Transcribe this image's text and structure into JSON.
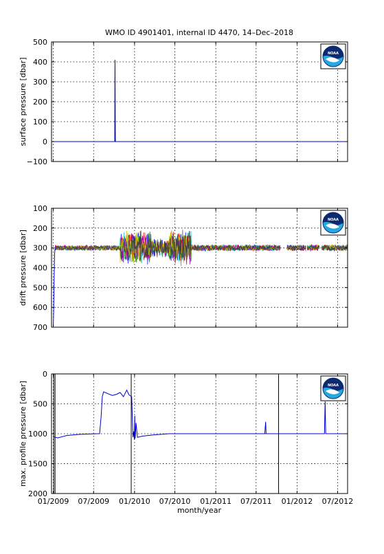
{
  "title": "WMO ID 4901401, internal ID 4470, 14–Dec–2018",
  "logo": {
    "text": "NOAA",
    "colors": {
      "dark": "#0b2a6f",
      "light": "#26a9e0",
      "white": "#ffffff"
    }
  },
  "x_axis": {
    "label": "month/year",
    "tick_labels": [
      "01/2009",
      "07/2009",
      "01/2010",
      "07/2010",
      "01/2011",
      "07/2011",
      "01/2012",
      "07/2012"
    ],
    "tick_positions": [
      0,
      181,
      365,
      546,
      730,
      911,
      1095,
      1277
    ],
    "range": [
      -8,
      1322
    ]
  },
  "chart_data": [
    {
      "type": "line",
      "ylabel": "surface pressure [dbar]",
      "ylim": [
        -100,
        500
      ],
      "y_ticks": [
        500,
        400,
        300,
        200,
        100,
        0,
        -100
      ],
      "y_tick_labels": [
        "500",
        "400",
        "300",
        "200",
        "100",
        "0",
        "−100"
      ],
      "grid": true,
      "series": [
        {
          "color": "#0000cc",
          "points": [
            [
              -8,
              0
            ],
            [
              276,
              0
            ],
            [
              277,
              410
            ],
            [
              278,
              200
            ],
            [
              279,
              0
            ],
            [
              1322,
              0
            ]
          ]
        }
      ]
    },
    {
      "type": "line",
      "ylabel": "drift pressure [dbar]",
      "ylim": [
        700,
        100
      ],
      "y_reversed": true,
      "y_ticks": [
        100,
        200,
        300,
        400,
        500,
        600,
        700
      ],
      "y_tick_labels": [
        "100",
        "200",
        "300",
        "400",
        "500",
        "600",
        "700"
      ],
      "grid": true,
      "series_colors": [
        "#0000ff",
        "#008000",
        "#ff0000",
        "#00bfbf",
        "#bf00bf",
        "#bfbf00",
        "#404040"
      ],
      "baseline": 300,
      "descent": [
        [
          0,
          690
        ],
        [
          2,
          600
        ],
        [
          4,
          450
        ],
        [
          6,
          330
        ],
        [
          8,
          300
        ]
      ],
      "gaps": [
        [
          1020,
          1050
        ],
        [
          1135,
          1140
        ],
        [
          1195,
          1205
        ]
      ],
      "spread_by_period": [
        {
          "from": 8,
          "to": 300,
          "amplitude": 25
        },
        {
          "from": 300,
          "to": 440,
          "amplitude": 150
        },
        {
          "from": 440,
          "to": 520,
          "amplitude": 80
        },
        {
          "from": 520,
          "to": 620,
          "amplitude": 160
        },
        {
          "from": 620,
          "to": 1322,
          "amplitude": 30
        }
      ]
    },
    {
      "type": "line",
      "ylabel": "max. profile pressure [dbar]",
      "ylim": [
        2000,
        0
      ],
      "y_reversed": true,
      "y_ticks": [
        0,
        500,
        1000,
        1500,
        2000
      ],
      "y_tick_labels": [
        "0",
        "500",
        "1000",
        "1500",
        "2000"
      ],
      "grid": true,
      "vertical_markers": [
        2,
        8,
        350,
        1012
      ],
      "series": [
        {
          "color": "#0000cc",
          "points": [
            [
              0,
              1050
            ],
            [
              20,
              1070
            ],
            [
              60,
              1030
            ],
            [
              120,
              1010
            ],
            [
              200,
              1000
            ],
            [
              208,
              1000
            ],
            [
              215,
              700
            ],
            [
              220,
              380
            ],
            [
              226,
              300
            ],
            [
              245,
              330
            ],
            [
              265,
              360
            ],
            [
              285,
              340
            ],
            [
              300,
              310
            ],
            [
              315,
              380
            ],
            [
              330,
              270
            ],
            [
              340,
              350
            ],
            [
              352,
              380
            ],
            [
              358,
              1060
            ],
            [
              362,
              960
            ],
            [
              364,
              1100
            ],
            [
              366,
              700
            ],
            [
              368,
              1080
            ],
            [
              372,
              820
            ],
            [
              378,
              1060
            ],
            [
              400,
              1040
            ],
            [
              450,
              1020
            ],
            [
              520,
              1000
            ],
            [
              600,
              1000
            ],
            [
              700,
              1000
            ],
            [
              800,
              1000
            ],
            [
              950,
              1000
            ],
            [
              954,
              800
            ],
            [
              956,
              1000
            ],
            [
              1012,
              1000
            ],
            [
              1150,
              1000
            ],
            [
              1218,
              1000
            ],
            [
              1221,
              460
            ],
            [
              1224,
              1000
            ],
            [
              1322,
              1000
            ]
          ]
        }
      ]
    }
  ]
}
